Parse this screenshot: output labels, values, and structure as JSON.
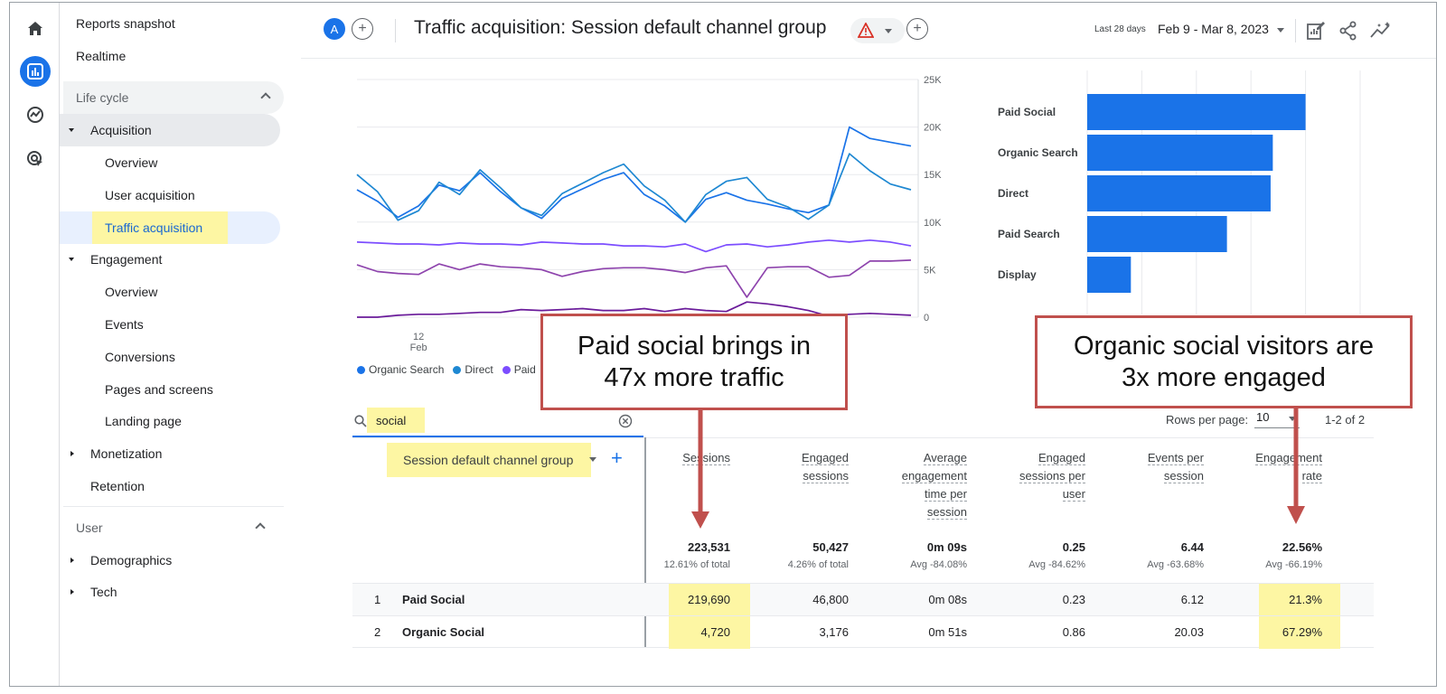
{
  "rail": {
    "items": [
      "home-icon",
      "reports-icon",
      "explore-icon",
      "advertising-icon"
    ],
    "active_color": "#1a73e8"
  },
  "sidebar": {
    "top_items": [
      "Reports snapshot",
      "Realtime"
    ],
    "lifecycle": {
      "label": "Life cycle",
      "groups": [
        {
          "label": "Acquisition",
          "items": [
            "Overview",
            "User acquisition",
            "Traffic acquisition"
          ]
        },
        {
          "label": "Engagement",
          "items": [
            "Overview",
            "Events",
            "Conversions",
            "Pages and screens",
            "Landing page"
          ]
        },
        {
          "label": "Monetization"
        },
        {
          "label": "Retention"
        }
      ]
    },
    "user": {
      "label": "User",
      "groups": [
        {
          "label": "Demographics"
        },
        {
          "label": "Tech"
        }
      ]
    }
  },
  "header": {
    "avatar": "A",
    "title": "Traffic acquisition: Session default channel group",
    "date_label": "Last 28 days",
    "date_range": "Feb 9 - Mar 8, 2023",
    "plus": "+"
  },
  "chart_data": [
    {
      "type": "line",
      "y_ticks": [
        "25K",
        "20K",
        "15K",
        "10K",
        "5K",
        "0"
      ],
      "ylim": [
        0,
        25000
      ],
      "x_ticks": [
        {
          "day": "12",
          "month": "Feb"
        }
      ],
      "x_count": 28,
      "grid": true,
      "legend_items": [
        "Organic Search",
        "Direct",
        "Paid"
      ],
      "legend_position": "bottom",
      "series": [
        {
          "name": "Organic Search",
          "color": "#1a73e8",
          "values": [
            13400,
            12200,
            10500,
            11700,
            13900,
            13300,
            15200,
            13200,
            11500,
            10400,
            12500,
            13500,
            14500,
            15200,
            12900,
            11700,
            10000,
            12400,
            13100,
            12300,
            11900,
            11400,
            11000,
            11800,
            20000,
            18800,
            18400,
            18000
          ]
        },
        {
          "name": "Direct",
          "color": "#1e88d2",
          "values": [
            15000,
            13200,
            10200,
            11200,
            14200,
            12900,
            15500,
            13600,
            11500,
            10700,
            13000,
            14100,
            15200,
            16100,
            13800,
            12300,
            10000,
            12900,
            14300,
            14700,
            12400,
            11600,
            10300,
            11800,
            17200,
            15400,
            14000,
            13400
          ]
        },
        {
          "name": "Paid",
          "color": "#7c4dff",
          "values": [
            7900,
            7800,
            7700,
            7700,
            7600,
            7800,
            7700,
            7700,
            7600,
            7900,
            7800,
            7700,
            7700,
            7500,
            7500,
            7400,
            7700,
            6900,
            7600,
            7700,
            7400,
            7600,
            7900,
            8100,
            7900,
            8100,
            7900,
            7500
          ]
        },
        {
          "color": "#8e44ad",
          "values": [
            5500,
            4800,
            4600,
            4500,
            5600,
            5000,
            5600,
            5300,
            5200,
            5000,
            4300,
            4800,
            5100,
            5200,
            5200,
            5000,
            4700,
            5200,
            5400,
            2100,
            5200,
            5300,
            5300,
            4200,
            4400,
            5900,
            5900,
            6000
          ]
        },
        {
          "color": "#6a1b9a",
          "values": [
            0,
            0,
            200,
            300,
            300,
            400,
            500,
            500,
            800,
            700,
            800,
            900,
            700,
            700,
            900,
            600,
            900,
            700,
            600,
            1600,
            1400,
            1100,
            700,
            100,
            300,
            400,
            300,
            200
          ]
        }
      ]
    },
    {
      "type": "bar",
      "orientation": "horizontal",
      "categories": [
        "Paid Social",
        "Organic Search",
        "Direct",
        "Paid Search",
        "Display"
      ],
      "values": [
        100,
        85,
        84,
        64,
        20
      ],
      "color": "#1a73e8",
      "grid": true
    }
  ],
  "callouts": [
    {
      "text_line1": "Paid social brings in",
      "text_line2": "47x more traffic"
    },
    {
      "text_line1": "Organic social visitors are",
      "text_line2": "3x more engaged"
    }
  ],
  "table": {
    "search_value": "social",
    "rows_per_page_label": "Rows per page:",
    "rows_per_page": "10",
    "pagination": "1-2 of 2",
    "dimension_label": "Session default channel group",
    "columns": [
      {
        "l1": "Sessions"
      },
      {
        "l1": "Engaged",
        "l2": "sessions"
      },
      {
        "l1": "Average",
        "l2": "engagement",
        "l3": "time per",
        "l4": "session"
      },
      {
        "l1": "Engaged",
        "l2": "sessions per",
        "l3": "user"
      },
      {
        "l1": "Events per",
        "l2": "session"
      },
      {
        "l1": "Engagement",
        "l2": "rate"
      }
    ],
    "totals": [
      {
        "value": "223,531",
        "sub": "12.61% of total"
      },
      {
        "value": "50,427",
        "sub": "4.26% of total"
      },
      {
        "value": "0m 09s",
        "sub": "Avg -84.08%"
      },
      {
        "value": "0.25",
        "sub": "Avg -84.62%"
      },
      {
        "value": "6.44",
        "sub": "Avg -63.68%"
      },
      {
        "value": "22.56%",
        "sub": "Avg -66.19%"
      }
    ],
    "rows": [
      {
        "index": "1",
        "name": "Paid Social",
        "cells": [
          "219,690",
          "46,800",
          "0m 08s",
          "0.23",
          "6.12",
          "21.3%"
        ]
      },
      {
        "index": "2",
        "name": "Organic Social",
        "cells": [
          "4,720",
          "3,176",
          "0m 51s",
          "0.86",
          "20.03",
          "67.29%"
        ]
      }
    ]
  },
  "colors": {
    "accent": "#1a73e8",
    "highlight": "#fdf6a3",
    "callout_border": "#c0504d"
  }
}
